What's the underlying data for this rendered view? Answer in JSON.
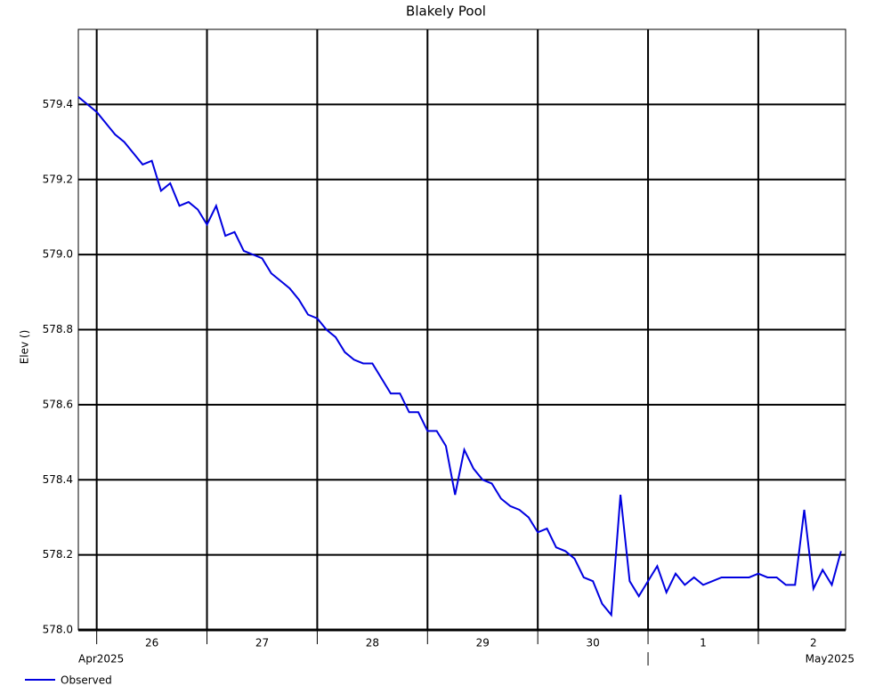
{
  "chart_data": {
    "type": "line",
    "title": "Blakely Pool",
    "y_label": "Elev ()",
    "x": [
      "2025-04-25T20:00",
      "2025-04-25T22:00",
      "2025-04-26T00:00",
      "2025-04-26T02:00",
      "2025-04-26T04:00",
      "2025-04-26T06:00",
      "2025-04-26T08:00",
      "2025-04-26T10:00",
      "2025-04-26T12:00",
      "2025-04-26T14:00",
      "2025-04-26T16:00",
      "2025-04-26T18:00",
      "2025-04-26T20:00",
      "2025-04-26T22:00",
      "2025-04-27T00:00",
      "2025-04-27T02:00",
      "2025-04-27T04:00",
      "2025-04-27T06:00",
      "2025-04-27T08:00",
      "2025-04-27T10:00",
      "2025-04-27T12:00",
      "2025-04-27T14:00",
      "2025-04-27T16:00",
      "2025-04-27T18:00",
      "2025-04-27T20:00",
      "2025-04-27T22:00",
      "2025-04-28T00:00",
      "2025-04-28T02:00",
      "2025-04-28T04:00",
      "2025-04-28T06:00",
      "2025-04-28T08:00",
      "2025-04-28T10:00",
      "2025-04-28T12:00",
      "2025-04-28T14:00",
      "2025-04-28T16:00",
      "2025-04-28T18:00",
      "2025-04-28T20:00",
      "2025-04-28T22:00",
      "2025-04-29T00:00",
      "2025-04-29T02:00",
      "2025-04-29T04:00",
      "2025-04-29T06:00",
      "2025-04-29T08:00",
      "2025-04-29T10:00",
      "2025-04-29T12:00",
      "2025-04-29T14:00",
      "2025-04-29T16:00",
      "2025-04-29T18:00",
      "2025-04-29T20:00",
      "2025-04-29T22:00",
      "2025-04-30T00:00",
      "2025-04-30T02:00",
      "2025-04-30T04:00",
      "2025-04-30T06:00",
      "2025-04-30T08:00",
      "2025-04-30T10:00",
      "2025-04-30T12:00",
      "2025-04-30T14:00",
      "2025-04-30T16:00",
      "2025-04-30T18:00",
      "2025-04-30T20:00",
      "2025-04-30T22:00",
      "2025-05-01T00:00",
      "2025-05-01T02:00",
      "2025-05-01T04:00",
      "2025-05-01T06:00",
      "2025-05-01T08:00",
      "2025-05-01T10:00",
      "2025-05-01T12:00",
      "2025-05-01T14:00",
      "2025-05-01T16:00",
      "2025-05-01T18:00",
      "2025-05-01T20:00",
      "2025-05-01T22:00",
      "2025-05-02T00:00",
      "2025-05-02T02:00",
      "2025-05-02T04:00",
      "2025-05-02T06:00",
      "2025-05-02T08:00",
      "2025-05-02T10:00",
      "2025-05-02T12:00",
      "2025-05-02T14:00",
      "2025-05-02T16:00",
      "2025-05-02T18:00"
    ],
    "series": [
      {
        "name": "Observed",
        "color": "#0000e0",
        "values": [
          579.42,
          579.4,
          579.38,
          579.35,
          579.32,
          579.3,
          579.27,
          579.24,
          579.25,
          579.17,
          579.19,
          579.13,
          579.14,
          579.12,
          579.08,
          579.13,
          579.05,
          579.06,
          579.01,
          579.0,
          578.99,
          578.95,
          578.93,
          578.91,
          578.88,
          578.84,
          578.83,
          578.8,
          578.78,
          578.74,
          578.72,
          578.71,
          578.71,
          578.67,
          578.63,
          578.63,
          578.58,
          578.58,
          578.53,
          578.53,
          578.49,
          578.36,
          578.48,
          578.43,
          578.4,
          578.39,
          578.35,
          578.33,
          578.32,
          578.3,
          578.26,
          578.27,
          578.22,
          578.21,
          578.19,
          578.14,
          578.13,
          578.07,
          578.04,
          578.36,
          578.13,
          578.09,
          578.13,
          578.17,
          578.1,
          578.15,
          578.12,
          578.14,
          578.12,
          578.13,
          578.14,
          578.14,
          578.14,
          578.14,
          578.15,
          578.14,
          578.14,
          578.12,
          578.12,
          578.32,
          578.11,
          578.16,
          578.12,
          578.21
        ]
      }
    ],
    "xlim": [
      "2025-04-25T20:00",
      "2025-05-02T19:00"
    ],
    "xticks": [
      {
        "value": "2025-04-26T00:00",
        "label": "26"
      },
      {
        "value": "2025-04-27T00:00",
        "label": "27"
      },
      {
        "value": "2025-04-28T00:00",
        "label": "28"
      },
      {
        "value": "2025-04-29T00:00",
        "label": "29"
      },
      {
        "value": "2025-04-30T00:00",
        "label": "30"
      },
      {
        "value": "2025-05-01T00:00",
        "label": "1"
      },
      {
        "value": "2025-05-02T00:00",
        "label": "2"
      }
    ],
    "month_labels": [
      {
        "value": "2025-04-01T00:00",
        "label": "Apr2025"
      },
      {
        "value": "2025-05-01T00:00",
        "label": "May2025"
      }
    ],
    "ylim": [
      578.0,
      579.6
    ],
    "yticks": [
      {
        "value": 578.0,
        "label": "578.0"
      },
      578.2,
      578.4,
      578.6,
      578.8,
      {
        "value": 579.0,
        "label": "579.0"
      },
      579.2,
      579.4
    ],
    "grid": true,
    "legend": "bottom-left"
  }
}
